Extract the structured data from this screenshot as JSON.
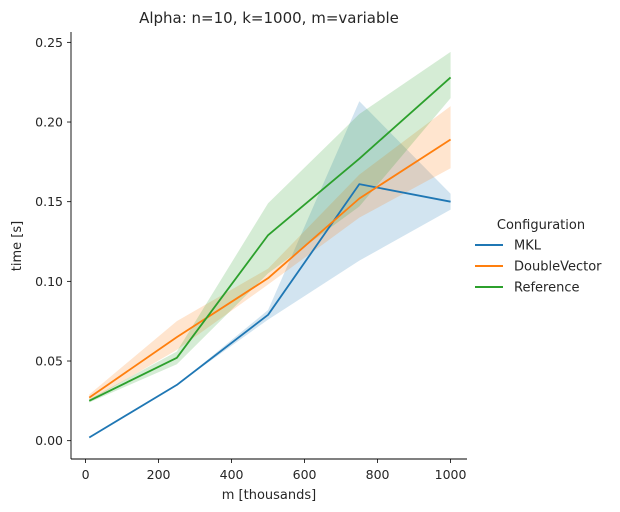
{
  "chart_data": {
    "type": "line",
    "title": "Alpha: n=10, k=1000, m=variable",
    "xlabel": "m [thousands]",
    "ylabel": "time [s]",
    "xlim": [
      -40,
      1045
    ],
    "ylim": [
      -0.0115,
      0.2565
    ],
    "xticks": [
      0,
      200,
      400,
      600,
      800,
      1000
    ],
    "yticks": [
      0.0,
      0.05,
      0.1,
      0.15,
      0.2,
      0.25
    ],
    "xtick_labels": [
      "0",
      "200",
      "400",
      "600",
      "800",
      "1000"
    ],
    "ytick_labels": [
      "0.00",
      "0.05",
      "0.10",
      "0.15",
      "0.20",
      "0.25"
    ],
    "grid": false,
    "legend": {
      "title": "Configuration",
      "placement": "outside-right"
    },
    "x": [
      10,
      250,
      500,
      750,
      1000
    ],
    "series": [
      {
        "name": "MKL",
        "color": "#1f77b4",
        "values": [
          0.002,
          0.035,
          0.079,
          0.161,
          0.15
        ],
        "ci_low": [
          0.002,
          0.035,
          0.076,
          0.113,
          0.145
        ],
        "ci_high": [
          0.002,
          0.035,
          0.082,
          0.213,
          0.155
        ]
      },
      {
        "name": "DoubleVector",
        "color": "#ff7f0e",
        "values": [
          0.027,
          0.065,
          0.102,
          0.152,
          0.189
        ],
        "ci_low": [
          0.025,
          0.057,
          0.098,
          0.14,
          0.171
        ],
        "ci_high": [
          0.029,
          0.075,
          0.108,
          0.167,
          0.21
        ]
      },
      {
        "name": "Reference",
        "color": "#2ca02c",
        "values": [
          0.025,
          0.052,
          0.129,
          0.177,
          0.228
        ],
        "ci_low": [
          0.024,
          0.048,
          0.105,
          0.147,
          0.215
        ],
        "ci_high": [
          0.026,
          0.056,
          0.149,
          0.205,
          0.244
        ]
      }
    ]
  }
}
